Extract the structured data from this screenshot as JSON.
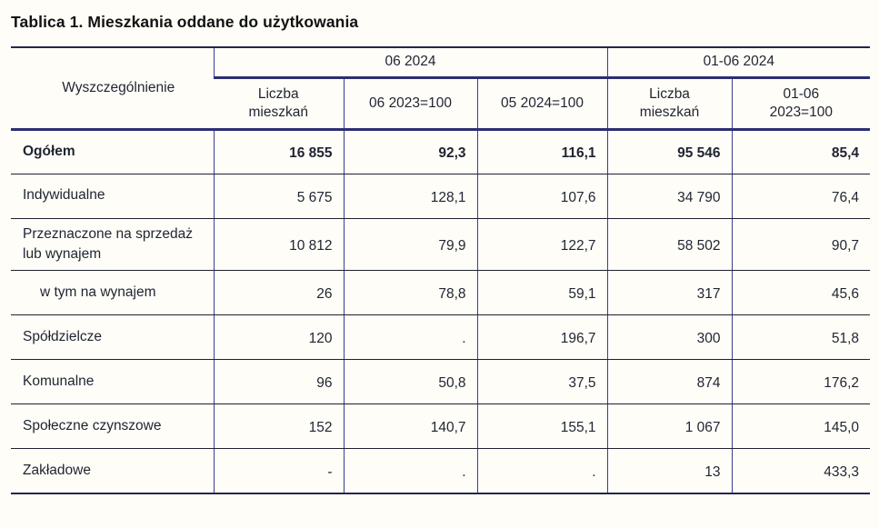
{
  "title": "Tablica 1. Mieszkania oddane do użytkowania",
  "table": {
    "stub_header": "Wyszczególnienie",
    "col_groups": [
      {
        "label": "06 2024",
        "span": 3
      },
      {
        "label": "01-06 2024",
        "span": 2
      }
    ],
    "sub_headers": [
      "Liczba mieszkań",
      "06 2023=100",
      "05 2024=100",
      "Liczba mieszkań",
      "01-06 2023=100"
    ],
    "rows": [
      {
        "label": "Ogółem",
        "bold": true,
        "indent": false,
        "values": [
          "16 855",
          "92,3",
          "116,1",
          "95 546",
          "85,4"
        ]
      },
      {
        "label": "Indywidualne",
        "bold": false,
        "indent": false,
        "values": [
          "5 675",
          "128,1",
          "107,6",
          "34 790",
          "76,4"
        ]
      },
      {
        "label": "Przeznaczone na sprzedaż lub wynajem",
        "bold": false,
        "indent": false,
        "values": [
          "10 812",
          "79,9",
          "122,7",
          "58 502",
          "90,7"
        ]
      },
      {
        "label": "w tym na wynajem",
        "bold": false,
        "indent": true,
        "values": [
          "26",
          "78,8",
          "59,1",
          "317",
          "45,6"
        ]
      },
      {
        "label": "Spółdzielcze",
        "bold": false,
        "indent": false,
        "values": [
          "120",
          ".",
          "196,7",
          "300",
          "51,8"
        ]
      },
      {
        "label": "Komunalne",
        "bold": false,
        "indent": false,
        "values": [
          "96",
          "50,8",
          "37,5",
          "874",
          "176,2"
        ]
      },
      {
        "label": "Społeczne czynszowe",
        "bold": false,
        "indent": false,
        "values": [
          "152",
          "140,7",
          "155,1",
          "1 067",
          "145,0"
        ]
      },
      {
        "label": "Zakładowe",
        "bold": false,
        "indent": false,
        "values": [
          "-",
          ".",
          ".",
          "13",
          "433,3"
        ]
      }
    ]
  },
  "colors": {
    "border_navy_thick": "#2b2e72",
    "border_navy_outer": "#23264f",
    "border_row_separator": "#1e2130",
    "border_vertical": "#3c3e90",
    "text": "#1f2430",
    "background": "#fffdf8"
  }
}
